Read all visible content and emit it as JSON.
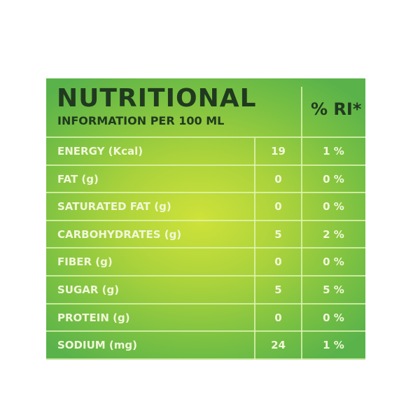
{
  "header": {
    "title": "NUTRITIONAL",
    "subtitle": "INFORMATION PER 100 ML",
    "ri_label": "% RI*"
  },
  "rows": [
    {
      "label": "ENERGY (Kcal)",
      "value": "19",
      "ri": "1 %"
    },
    {
      "label": "FAT (g)",
      "value": "0",
      "ri": "0 %"
    },
    {
      "label": "SATURATED FAT (g)",
      "value": "0",
      "ri": "0 %"
    },
    {
      "label": "CARBOHYDRATES (g)",
      "value": "5",
      "ri": "2 %"
    },
    {
      "label": "FIBER (g)",
      "value": "0",
      "ri": "0 %"
    },
    {
      "label": "SUGAR (g)",
      "value": "5",
      "ri": "5 %"
    },
    {
      "label": "PROTEIN (g)",
      "value": "0",
      "ri": "0 %"
    },
    {
      "label": "SODIUM (mg)",
      "value": "24",
      "ri": "1 %"
    }
  ],
  "colors": {
    "background_center": "#cfe23a",
    "background_edge": "#5ab34a",
    "header_text": "#203a1f",
    "row_text": "#f1f7d8"
  }
}
